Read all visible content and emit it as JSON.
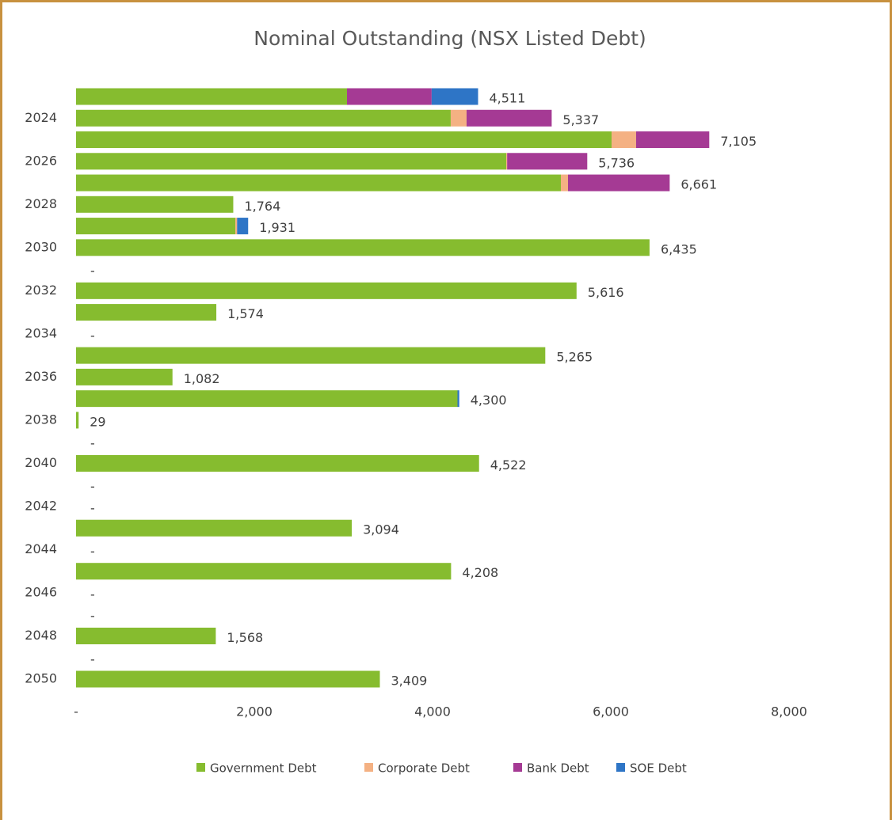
{
  "chart_data": {
    "type": "bar",
    "orientation": "horizontal",
    "stacked": true,
    "title": "Nominal Outstanding (NSX Listed Debt)",
    "categories": [
      null,
      "2024",
      null,
      "2026",
      null,
      "2028",
      null,
      "2030",
      null,
      "2032",
      null,
      "2034",
      null,
      "2036",
      null,
      "2038",
      null,
      "2040",
      null,
      "2042",
      null,
      "2044",
      null,
      "2046",
      null,
      "2048",
      null,
      "2050"
    ],
    "series": [
      {
        "name": "Government Debt",
        "color": "#86bc2f",
        "values": [
          3040,
          4204,
          6009,
          4827,
          5440,
          1764,
          1787,
          6435,
          0,
          5616,
          1574,
          0,
          5265,
          1082,
          4280,
          29,
          0,
          4522,
          0,
          0,
          3094,
          0,
          4208,
          0,
          0,
          1568,
          0,
          3409
        ]
      },
      {
        "name": "Corporate Debt",
        "color": "#f4b183",
        "values": [
          0,
          178,
          275,
          10,
          80,
          0,
          20,
          0,
          0,
          0,
          0,
          0,
          0,
          0,
          0,
          0,
          0,
          0,
          0,
          0,
          0,
          0,
          0,
          0,
          0,
          0,
          0,
          0
        ]
      },
      {
        "name": "Bank Debt",
        "color": "#a53a94",
        "values": [
          950,
          955,
          821,
          899,
          1141,
          0,
          0,
          0,
          0,
          0,
          0,
          0,
          0,
          0,
          0,
          0,
          0,
          0,
          0,
          0,
          0,
          0,
          0,
          0,
          0,
          0,
          0,
          0
        ]
      },
      {
        "name": "SOE Debt",
        "color": "#2e75c6",
        "values": [
          521,
          0,
          0,
          0,
          0,
          0,
          124,
          0,
          0,
          0,
          0,
          0,
          0,
          0,
          20,
          0,
          0,
          0,
          0,
          0,
          0,
          0,
          0,
          0,
          0,
          0,
          0,
          0
        ]
      }
    ],
    "total_labels": [
      "4,511",
      "5,337",
      "7,105",
      "5,736",
      "6,661",
      "1,764",
      "1,931",
      "6,435",
      "-",
      "5,616",
      "1,574",
      "-",
      "5,265",
      "1,082",
      "4,300",
      "29",
      "-",
      "4,522",
      "-",
      "-",
      "3,094",
      "-",
      "4,208",
      "-",
      "-",
      "1,568",
      "-",
      "3,409"
    ],
    "xlim": [
      0,
      9000
    ],
    "xticks": [
      {
        "value": 0,
        "label": "-"
      },
      {
        "value": 2000,
        "label": "2,000"
      },
      {
        "value": 4000,
        "label": "4,000"
      },
      {
        "value": 6000,
        "label": "6,000"
      },
      {
        "value": 8000,
        "label": "8,000"
      }
    ],
    "legend": "bottom",
    "grid": false
  }
}
